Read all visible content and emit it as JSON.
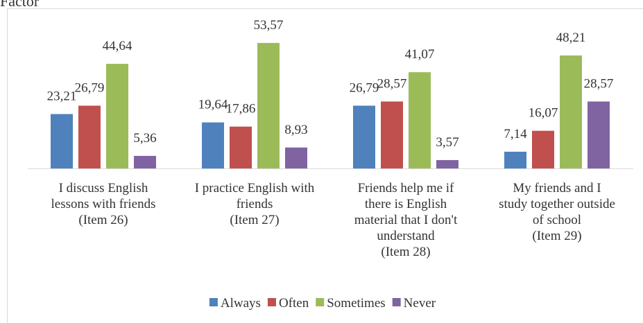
{
  "chart_data": {
    "type": "bar",
    "title": "Factor",
    "categories": [
      "I discuss English\nlessons with friends\n(Item 26)",
      "I practice English with\nfriends\n(Item 27)",
      "Friends help me if\nthere is English\nmaterial that I don't\nunderstand\n(Item 28)",
      "My friends and I\nstudy together outside\nof school\n(Item 29)"
    ],
    "series": [
      {
        "name": "Always",
        "color": "#4f81bd",
        "values": [
          23.21,
          19.64,
          26.79,
          7.14
        ],
        "value_labels": [
          "23,21",
          "19,64",
          "26,79",
          "7,14"
        ]
      },
      {
        "name": "Often",
        "color": "#c0504d",
        "values": [
          26.79,
          17.86,
          28.57,
          16.07
        ],
        "value_labels": [
          "26,79",
          "17,86",
          "28,57",
          "16,07"
        ]
      },
      {
        "name": "Sometimes",
        "color": "#9bbb59",
        "values": [
          44.64,
          53.57,
          41.07,
          48.21
        ],
        "value_labels": [
          "44,64",
          "53,57",
          "41,07",
          "48,21"
        ]
      },
      {
        "name": "Never",
        "color": "#8064a2",
        "values": [
          5.36,
          8.93,
          3.57,
          28.57
        ],
        "value_labels": [
          "5,36",
          "8,93",
          "3,57",
          "28,57"
        ]
      }
    ],
    "legend": "bottom"
  }
}
